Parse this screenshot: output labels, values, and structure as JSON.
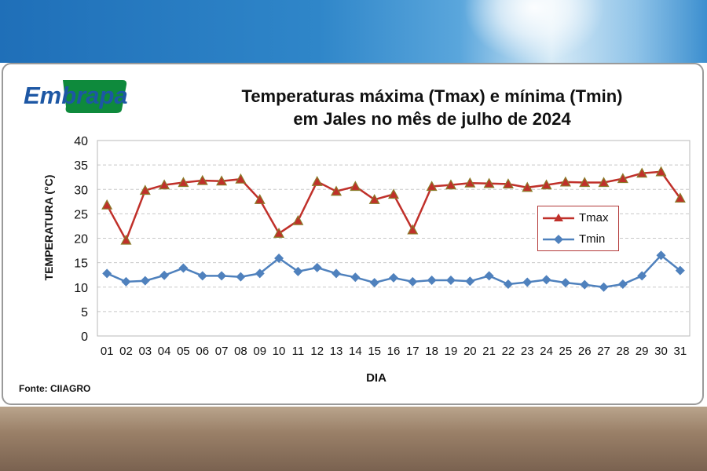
{
  "brand": {
    "logo_text": "Embrapa"
  },
  "source": "Fonte: CIIAGRO",
  "colors": {
    "tmax_line": "#c0302a",
    "tmax_marker": "#c0302a",
    "tmax_marker_stroke": "#8a7b2a",
    "tmin_line": "#4f81bd",
    "tmin_marker": "#4f81bd",
    "grid": "#c8c8c8",
    "legend_border": "#b33a3a",
    "logo_blue": "#1d57a4",
    "logo_green": "#0e8a3c"
  },
  "chart_data": {
    "type": "line",
    "title": "Temperaturas máxima (Tmax) e mínima (Tmin) em Jales no mês de julho de 2024",
    "title_lines": [
      "Temperaturas máxima (Tmax) e mínima (Tmin)",
      "em Jales no mês de julho de 2024"
    ],
    "xlabel": "DIA",
    "ylabel": "TEMPERATURA (°C)",
    "ylim": [
      0,
      40
    ],
    "yticks": [
      0,
      5,
      10,
      15,
      20,
      25,
      30,
      35,
      40
    ],
    "grid": "horizontal dashed",
    "legend_position": "right",
    "categories": [
      "01",
      "02",
      "03",
      "04",
      "05",
      "06",
      "07",
      "08",
      "09",
      "10",
      "11",
      "12",
      "13",
      "14",
      "15",
      "16",
      "17",
      "18",
      "19",
      "20",
      "21",
      "22",
      "23",
      "24",
      "25",
      "26",
      "27",
      "28",
      "29",
      "30",
      "31"
    ],
    "series": [
      {
        "name": "Tmax",
        "marker": "triangle",
        "values": [
          26.8,
          19.6,
          29.8,
          30.9,
          31.4,
          31.8,
          31.7,
          32.1,
          27.9,
          21.0,
          23.6,
          31.6,
          29.6,
          30.6,
          27.9,
          29.0,
          21.7,
          30.6,
          30.9,
          31.3,
          31.2,
          31.1,
          30.4,
          30.9,
          31.5,
          31.4,
          31.4,
          32.2,
          33.3,
          33.6,
          28.2
        ]
      },
      {
        "name": "Tmin",
        "marker": "diamond",
        "values": [
          12.8,
          11.1,
          11.3,
          12.4,
          13.9,
          12.3,
          12.3,
          12.1,
          12.8,
          15.9,
          13.2,
          14.0,
          12.8,
          12.0,
          10.9,
          11.9,
          11.1,
          11.4,
          11.4,
          11.2,
          12.3,
          10.6,
          11.0,
          11.5,
          10.9,
          10.5,
          10.0,
          10.6,
          12.3,
          16.5,
          13.4
        ]
      }
    ]
  }
}
